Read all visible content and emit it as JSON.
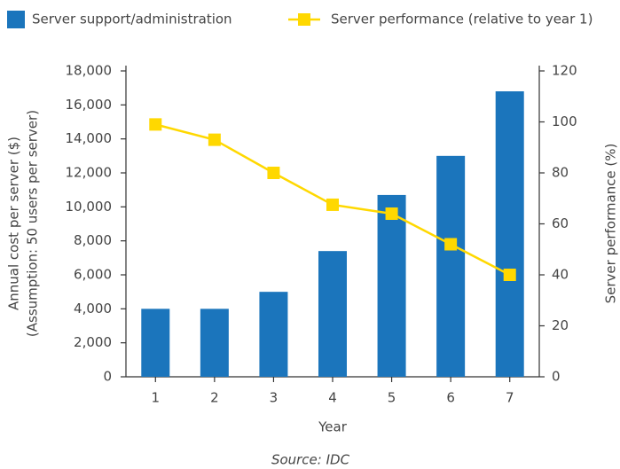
{
  "chart_data": {
    "type": "bar",
    "categories": [
      "1",
      "2",
      "3",
      "4",
      "5",
      "6",
      "7"
    ],
    "series": [
      {
        "name": "Server support/administration",
        "type": "bar",
        "color": "#1b75bc",
        "values": [
          4000,
          4000,
          5000,
          7400,
          10700,
          13000,
          16800
        ]
      },
      {
        "name": "Server performance (relative to year 1)",
        "type": "line",
        "axis": "y2",
        "color": "#ffd800",
        "values": [
          99,
          93,
          80,
          67.5,
          64,
          52,
          40
        ]
      }
    ],
    "xlabel": "Year",
    "ylabel": "Annual cost per server ($)",
    "ylabel_note": "(Assumption: 50 users per server)",
    "y2label": "Server performance (%)",
    "ylim": [
      0,
      18000
    ],
    "yticks": [
      0,
      {
        "value": 2000,
        "label": "2,000"
      },
      {
        "value": 4000,
        "label": "4,000"
      },
      {
        "value": 6000,
        "label": "6,000"
      },
      {
        "value": 8000,
        "label": "8,000"
      },
      {
        "value": 10000,
        "label": "10,000"
      },
      {
        "value": 12000,
        "label": "12,000"
      },
      {
        "value": 14000,
        "label": "14,000"
      },
      {
        "value": 16000,
        "label": "16,000"
      },
      {
        "value": 18000,
        "label": "18,000"
      }
    ],
    "y2lim": [
      0,
      120
    ],
    "y2ticks": [
      0,
      20,
      40,
      60,
      80,
      100,
      120
    ],
    "source": "Source: IDC",
    "legend": "top"
  }
}
